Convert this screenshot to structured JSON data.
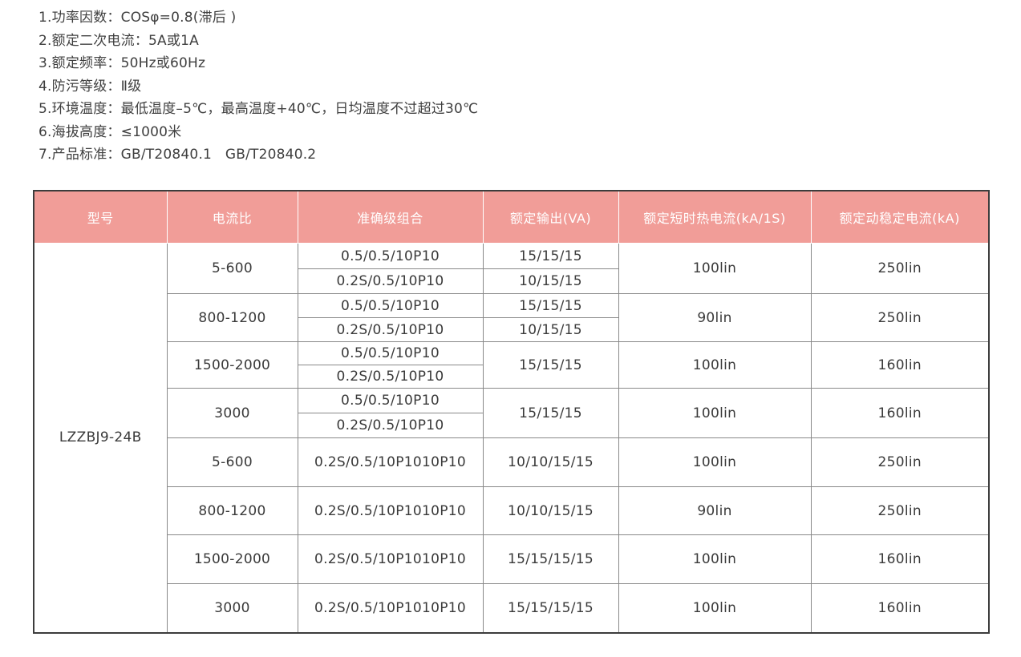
{
  "notes": {
    "items": [
      "1.功率因数：COSφ=0.8(滞后 )",
      "2.额定二次电流：5A或1A",
      "3.额定频率：50Hz或60Hz",
      "4.防污等级：Ⅱ级",
      "5.环境温度：最低温度–5℃，最高温度+40℃，日均温度不过超过30℃",
      "6.海拔高度：≤1000米",
      "7.产品标准：GB/T20840.1   GB/T20840.2"
    ]
  },
  "table": {
    "headers": [
      "型号",
      "电流比",
      "准确级组合",
      "额定输出(VA)",
      "额定短时热电流(kA/1S)",
      "额定动稳定电流(kA)"
    ],
    "model": "LZZBJ9-24B",
    "groups": [
      {
        "ratio": "5-600",
        "sub": [
          {
            "acc": "0.5/0.5/10P10",
            "va": "15/15/15"
          },
          {
            "acc": "0.2S/0.5/10P10",
            "va": "10/15/15"
          }
        ],
        "thermal": "100lin",
        "dynamic": "250lin"
      },
      {
        "ratio": "800-1200",
        "sub": [
          {
            "acc": "0.5/0.5/10P10",
            "va": "15/15/15"
          },
          {
            "acc": "0.2S/0.5/10P10",
            "va": "10/15/15"
          }
        ],
        "thermal": "90lin",
        "dynamic": "250lin"
      },
      {
        "ratio": "1500-2000",
        "sub": [
          {
            "acc": "0.5/0.5/10P10"
          },
          {
            "acc": "0.2S/0.5/10P10"
          }
        ],
        "va": "15/15/15",
        "thermal": "100lin",
        "dynamic": "160lin"
      },
      {
        "ratio": "3000",
        "sub": [
          {
            "acc": "0.5/0.5/10P10"
          },
          {
            "acc": "0.2S/0.5/10P10"
          }
        ],
        "va": "15/15/15",
        "thermal": "100lin",
        "dynamic": "160lin"
      },
      {
        "ratio": "5-600",
        "acc": "0.2S/0.5/10P1010P10",
        "va": "10/10/15/15",
        "thermal": "100lin",
        "dynamic": "250lin"
      },
      {
        "ratio": "800-1200",
        "acc": "0.2S/0.5/10P1010P10",
        "va": "10/10/15/15",
        "thermal": "90lin",
        "dynamic": "250lin"
      },
      {
        "ratio": "1500-2000",
        "acc": "0.2S/0.5/10P1010P10",
        "va": "15/15/15/15",
        "thermal": "100lin",
        "dynamic": "160lin"
      },
      {
        "ratio": "3000",
        "acc": "0.2S/0.5/10P1010P10",
        "va": "15/15/15/15",
        "thermal": "100lin",
        "dynamic": "160lin"
      }
    ]
  },
  "colors": {
    "header_bg": "#f19d98",
    "header_text": "#ffffff",
    "body_text": "#3a3a3a",
    "grid_line": "#898989",
    "outer_border": "#3c3c3c",
    "page_bg": "#ffffff"
  }
}
